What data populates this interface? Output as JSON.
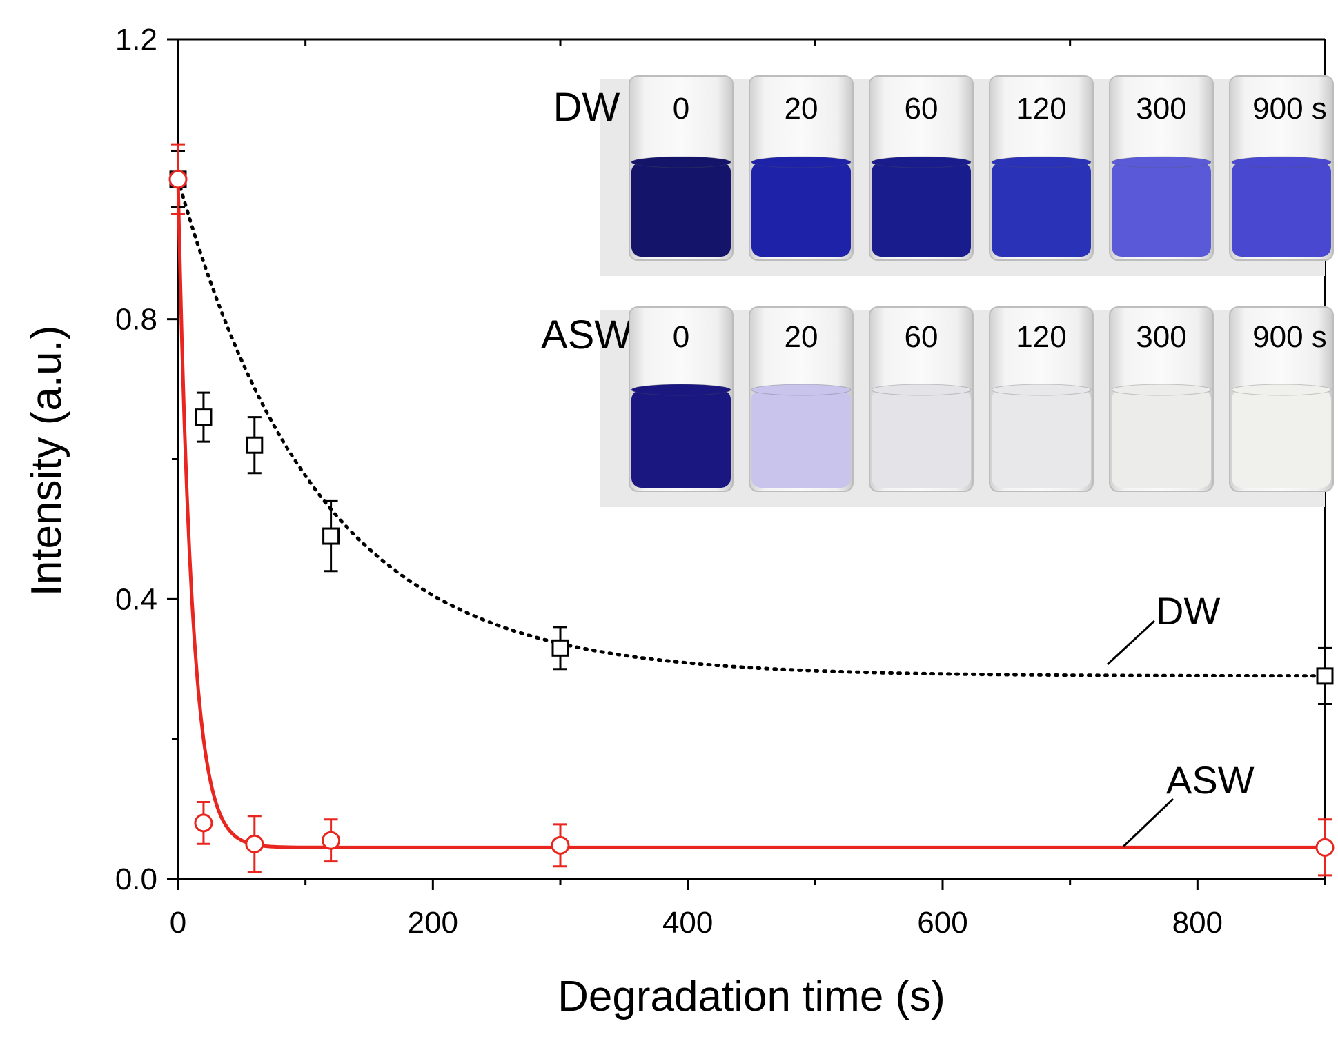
{
  "chart_data": {
    "type": "scatter",
    "title": "",
    "xlabel": "Degradation time (s)",
    "ylabel": "Intensity (a.u.)",
    "xlim": [
      0,
      900
    ],
    "ylim": [
      0,
      1.2
    ],
    "xticks": [
      0,
      200,
      400,
      600,
      800
    ],
    "yticks": [
      0.0,
      0.4,
      0.8,
      1.2
    ],
    "xtick_labels": [
      "0",
      "200",
      "400",
      "600",
      "800"
    ],
    "ytick_labels": [
      "0.0",
      "0.4",
      "0.8",
      "1.2"
    ],
    "grid": false,
    "series": [
      {
        "name": "DW",
        "label": "DW",
        "marker": "square",
        "color": "#000000",
        "fit_style": "dotted",
        "x": [
          0,
          20,
          60,
          120,
          300,
          900
        ],
        "y": [
          1.0,
          0.66,
          0.62,
          0.49,
          0.33,
          0.29
        ],
        "err": [
          0.04,
          0.035,
          0.04,
          0.05,
          0.03,
          0.04
        ],
        "fit": {
          "model": "exponential",
          "y0": 0.29,
          "A": 0.71,
          "tau": 110
        }
      },
      {
        "name": "ASW",
        "label": "ASW",
        "marker": "circle",
        "color": "#e8251f",
        "fit_style": "solid",
        "x": [
          0,
          20,
          60,
          120,
          300,
          900
        ],
        "y": [
          1.0,
          0.08,
          0.05,
          0.055,
          0.048,
          0.045
        ],
        "err": [
          0.05,
          0.03,
          0.04,
          0.03,
          0.03,
          0.04
        ],
        "fit": {
          "model": "exponential",
          "y0": 0.045,
          "A": 0.955,
          "tau": 11
        }
      }
    ],
    "inset": {
      "description_rows": [
        {
          "label": "DW",
          "times": [
            "0",
            "20",
            "60",
            "120",
            "300",
            "900 s"
          ],
          "colors": [
            "#14146a",
            "#1e22a8",
            "#181c8c",
            "#2a32b8",
            "#5a5ad8",
            "#4848d0"
          ]
        },
        {
          "label": "ASW",
          "times": [
            "0",
            "20",
            "60",
            "120",
            "300",
            "900 s"
          ],
          "colors": [
            "#1a1880",
            "#c8c4ec",
            "#e4e4e8",
            "#e8e8ea",
            "#ececea",
            "#f0f0ec"
          ]
        }
      ]
    }
  }
}
